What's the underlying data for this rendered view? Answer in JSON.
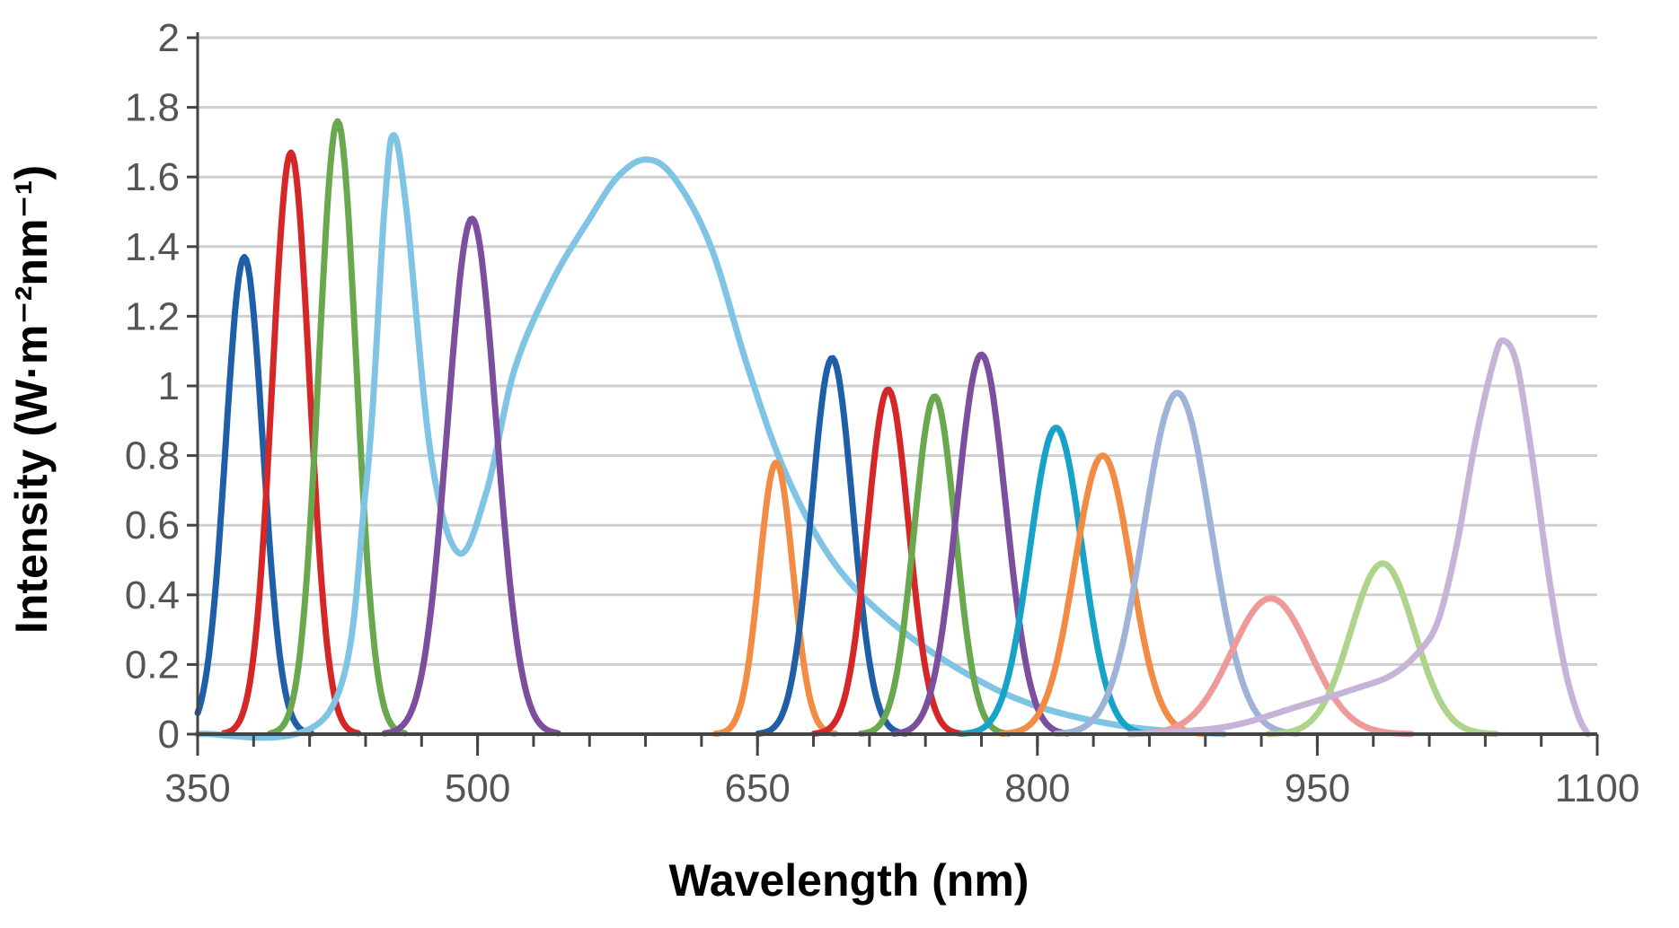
{
  "chart_data": {
    "type": "line",
    "title": "",
    "xlabel": "Wavelength (nm)",
    "ylabel": "Intensity (W·m⁻²nm⁻¹)",
    "xlim": [
      350,
      1100
    ],
    "ylim": [
      0,
      2
    ],
    "x_ticks": [
      350,
      500,
      650,
      800,
      950,
      1100
    ],
    "x_tick_labels": [
      "350",
      "500",
      "650",
      "800",
      "950",
      "1100"
    ],
    "y_ticks": [
      0,
      0.2,
      0.4,
      0.6,
      0.8,
      1,
      1.2,
      1.4,
      1.6,
      1.8,
      2
    ],
    "y_tick_labels": [
      "0",
      "0.2",
      "0.4",
      "0.6",
      "0.8",
      "1",
      "1.2",
      "1.4",
      "1.6",
      "1.8",
      "2"
    ],
    "grid": "horizontal",
    "legend": "none",
    "series": [
      {
        "color": "#1f5fa8",
        "peak_x": 375,
        "peak_y": 1.37,
        "width": 10
      },
      {
        "color": "#d62728",
        "peak_x": 400,
        "peak_y": 1.67,
        "width": 10
      },
      {
        "color": "#6aa84f",
        "peak_x": 425,
        "peak_y": 1.76,
        "width": 10
      },
      {
        "color": "#7fc4e4",
        "curve": [
          [
            350,
            0
          ],
          [
            420,
            0.06
          ],
          [
            440,
            0.7
          ],
          [
            450,
            1.5
          ],
          [
            455,
            1.72
          ],
          [
            462,
            1.5
          ],
          [
            475,
            0.8
          ],
          [
            490,
            0.52
          ],
          [
            505,
            0.7
          ],
          [
            520,
            1.05
          ],
          [
            540,
            1.3
          ],
          [
            560,
            1.48
          ],
          [
            575,
            1.6
          ],
          [
            590,
            1.65
          ],
          [
            605,
            1.6
          ],
          [
            625,
            1.4
          ],
          [
            645,
            1.05
          ],
          [
            665,
            0.75
          ],
          [
            690,
            0.5
          ],
          [
            720,
            0.33
          ],
          [
            760,
            0.18
          ],
          [
            800,
            0.08
          ],
          [
            850,
            0.02
          ],
          [
            900,
            0
          ]
        ]
      },
      {
        "color": "#7b4f9e",
        "peak_x": 497,
        "peak_y": 1.48,
        "width": 13
      },
      {
        "color": "#f28c45",
        "peak_x": 660,
        "peak_y": 0.78,
        "width": 9
      },
      {
        "color": "#1f5fa8",
        "peak_x": 690,
        "peak_y": 1.08,
        "width": 11
      },
      {
        "color": "#d62728",
        "peak_x": 720,
        "peak_y": 0.99,
        "width": 11
      },
      {
        "color": "#6aa84f",
        "peak_x": 745,
        "peak_y": 0.97,
        "width": 11
      },
      {
        "color": "#7b4f9e",
        "peak_x": 770,
        "peak_y": 1.09,
        "width": 13
      },
      {
        "color": "#17a2c8",
        "peak_x": 810,
        "peak_y": 0.88,
        "width": 14
      },
      {
        "color": "#f28c45",
        "peak_x": 835,
        "peak_y": 0.8,
        "width": 15
      },
      {
        "color": "#9fb3d8",
        "peak_x": 875,
        "peak_y": 0.98,
        "width": 18
      },
      {
        "color": "#ee9a9a",
        "peak_x": 925,
        "peak_y": 0.39,
        "width": 21
      },
      {
        "color": "#aed48c",
        "peak_x": 985,
        "peak_y": 0.49,
        "width": 17
      },
      {
        "color": "#c5b3d8",
        "curve": [
          [
            850,
            0
          ],
          [
            900,
            0.02
          ],
          [
            940,
            0.08
          ],
          [
            970,
            0.13
          ],
          [
            990,
            0.17
          ],
          [
            1005,
            0.24
          ],
          [
            1015,
            0.33
          ],
          [
            1025,
            0.55
          ],
          [
            1035,
            0.85
          ],
          [
            1045,
            1.08
          ],
          [
            1050,
            1.13
          ],
          [
            1057,
            1.06
          ],
          [
            1065,
            0.8
          ],
          [
            1075,
            0.42
          ],
          [
            1083,
            0.18
          ],
          [
            1090,
            0.05
          ],
          [
            1095,
            0
          ]
        ]
      }
    ]
  }
}
